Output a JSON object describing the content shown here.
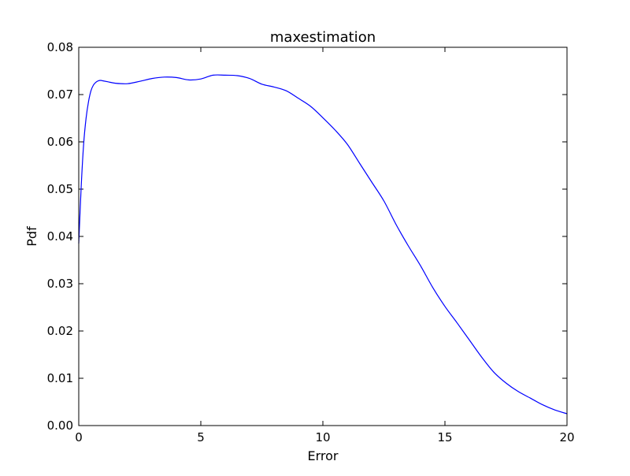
{
  "chart_data": {
    "type": "line",
    "title": "maxestimation",
    "xlabel": "Error",
    "ylabel": "Pdf",
    "xlim": [
      0,
      20
    ],
    "ylim": [
      0,
      0.08
    ],
    "x_ticks": [
      0,
      5,
      10,
      15,
      20
    ],
    "x_tick_labels": [
      "0",
      "5",
      "10",
      "15",
      "20"
    ],
    "y_ticks": [
      0.0,
      0.01,
      0.02,
      0.03,
      0.04,
      0.05,
      0.06,
      0.07,
      0.08
    ],
    "y_tick_labels": [
      "0.00",
      "0.01",
      "0.02",
      "0.03",
      "0.04",
      "0.05",
      "0.06",
      "0.07",
      "0.08"
    ],
    "grid": false,
    "legend": "none",
    "series": [
      {
        "color": "#0000ff",
        "x": [
          0,
          0.1,
          0.2,
          0.3,
          0.4,
          0.5,
          0.6,
          0.7,
          0.8,
          0.9,
          1.0,
          1.2,
          1.5,
          2.0,
          2.5,
          3.0,
          3.5,
          4.0,
          4.5,
          5.0,
          5.5,
          6.0,
          6.5,
          7.0,
          7.5,
          8.0,
          8.5,
          9.0,
          9.5,
          10.0,
          10.5,
          11.0,
          11.5,
          12.0,
          12.5,
          13.0,
          13.5,
          14.0,
          14.5,
          15.0,
          15.5,
          16.0,
          16.5,
          17.0,
          17.5,
          18.0,
          18.5,
          19.0,
          19.5,
          20.0
        ],
        "y": [
          0.0385,
          0.0505,
          0.0595,
          0.065,
          0.0685,
          0.0708,
          0.072,
          0.0726,
          0.0729,
          0.073,
          0.0729,
          0.0727,
          0.0724,
          0.0723,
          0.0728,
          0.0734,
          0.0737,
          0.0736,
          0.0731,
          0.0733,
          0.0741,
          0.0741,
          0.074,
          0.0734,
          0.0722,
          0.0716,
          0.0708,
          0.0692,
          0.0675,
          0.0651,
          0.0625,
          0.0595,
          0.0555,
          0.0515,
          0.0475,
          0.0425,
          0.038,
          0.0338,
          0.0292,
          0.0252,
          0.0217,
          0.0181,
          0.0145,
          0.0113,
          0.009,
          0.0072,
          0.0058,
          0.0044,
          0.0033,
          0.0025
        ]
      }
    ]
  }
}
